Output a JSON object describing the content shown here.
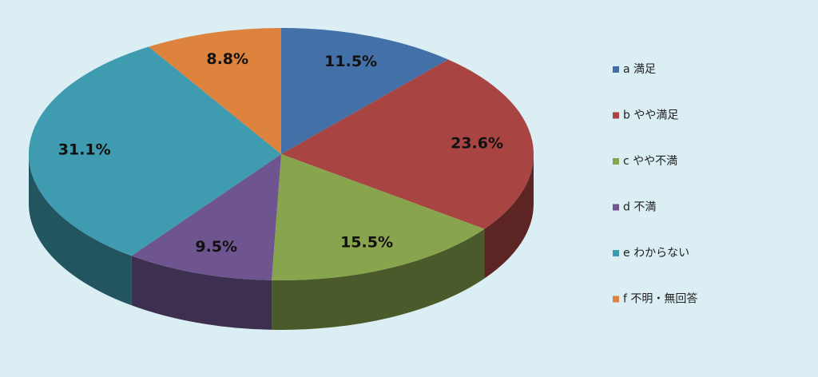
{
  "chart_data": {
    "type": "pie",
    "categories": [
      "a 満足",
      "b やや満足",
      "c やや不満",
      "d 不満",
      "e わからない",
      "f 不明・無回答"
    ],
    "values": [
      11.5,
      23.6,
      15.5,
      9.5,
      31.1,
      8.8
    ],
    "value_labels": [
      "11.5%",
      "23.6%",
      "15.5%",
      "9.5%",
      "31.1%",
      "8.8%"
    ],
    "colors": [
      "#4470a8",
      "#a84442",
      "#88a44c",
      "#6f5590",
      "#3f9bb0",
      "#dd833e"
    ],
    "legend": "right"
  }
}
